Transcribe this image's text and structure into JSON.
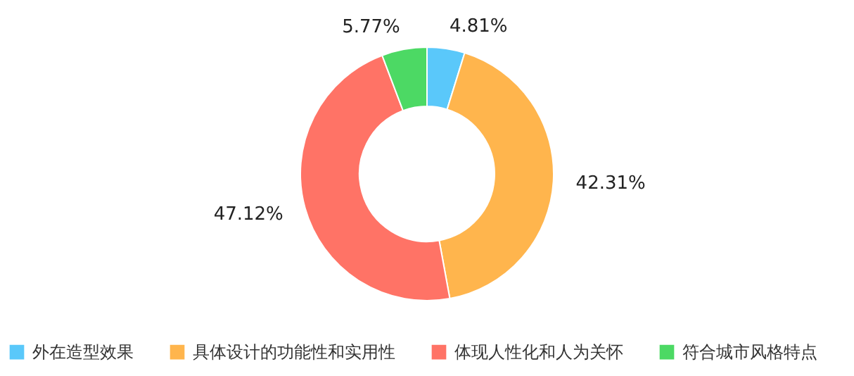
{
  "chart_data": {
    "type": "donut",
    "categories": [
      "外在造型效果",
      "具体设计的功能性和实用性",
      "体现人性化和人为关怀",
      "符合城市风格特点"
    ],
    "values": [
      4.81,
      42.31,
      47.12,
      5.77
    ],
    "colors": [
      "#5ac8fa",
      "#ffb54d",
      "#ff7366",
      "#4cd964"
    ],
    "value_labels": [
      "4.81%",
      "42.31%",
      "47.12%",
      "5.77%"
    ],
    "legend": "bottom"
  }
}
